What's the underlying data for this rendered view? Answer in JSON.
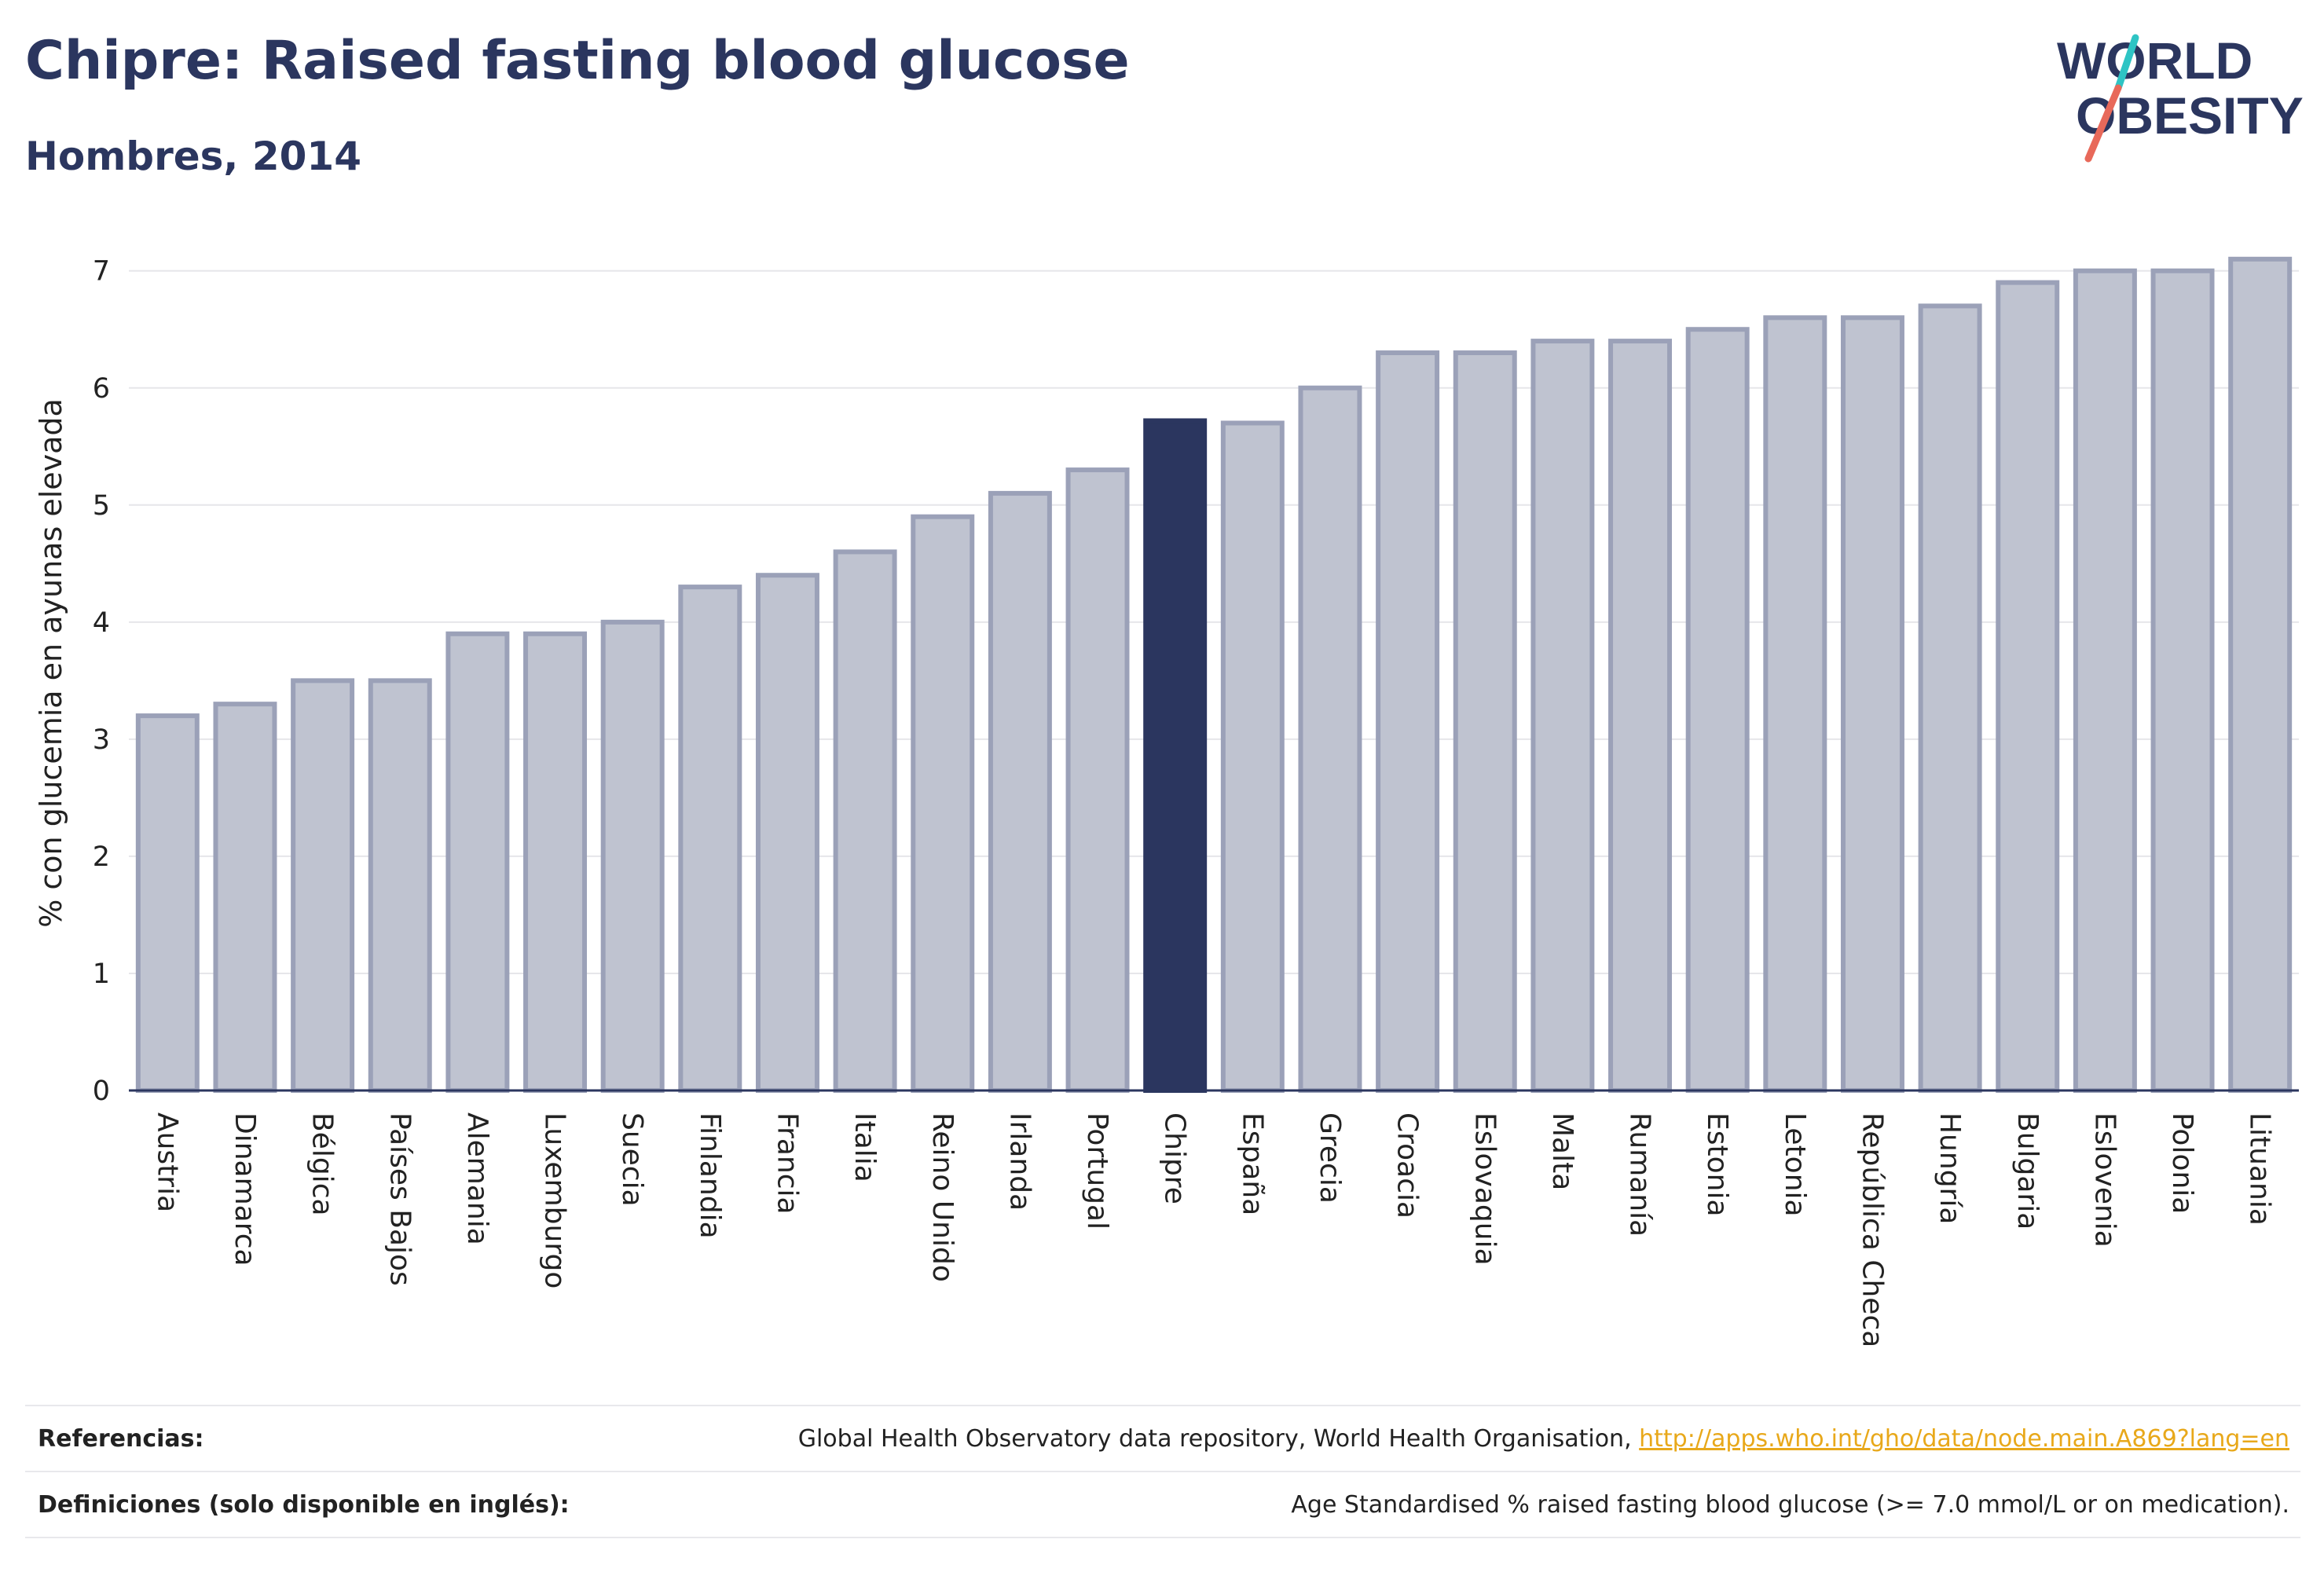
{
  "header": {
    "title": "Chipre: Raised fasting blood glucose",
    "subtitle": "Hombres, 2014"
  },
  "logo": {
    "line1": "WORLD",
    "line2": "OBESITY",
    "accent_colors": [
      "#2ec4c4",
      "#e8695a"
    ]
  },
  "colors": {
    "highlight": "#2b365f",
    "bar_fill": "#bfc3d0",
    "bar_stroke": "#9ba1b8",
    "grid": "#e6e6ea",
    "axis": "#2b365f"
  },
  "chart_data": {
    "type": "bar",
    "ylabel": "% con glucemia en ayunas elevada",
    "xlabel": "",
    "ylim": [
      0,
      7.3
    ],
    "yticks": [
      0,
      1,
      2,
      3,
      4,
      5,
      6,
      7
    ],
    "grid": true,
    "highlight": "Chipre",
    "categories": [
      "Austria",
      "Dinamarca",
      "Bélgica",
      "Países Bajos",
      "Alemania",
      "Luxemburgo",
      "Suecia",
      "Finlandia",
      "Francia",
      "Italia",
      "Reino Unido",
      "Irlanda",
      "Portugal",
      "Chipre",
      "España",
      "Grecia",
      "Croacia",
      "Eslovaquia",
      "Malta",
      "Rumanía",
      "Estonia",
      "Letonia",
      "República Checa",
      "Hungría",
      "Bulgaria",
      "Eslovenia",
      "Polonia",
      "Lituania"
    ],
    "values": [
      3.2,
      3.3,
      3.5,
      3.5,
      3.9,
      3.9,
      4.0,
      4.3,
      4.4,
      4.6,
      4.9,
      5.1,
      5.3,
      5.72,
      5.7,
      6.0,
      6.3,
      6.3,
      6.4,
      6.4,
      6.5,
      6.6,
      6.6,
      6.7,
      6.9,
      7.0,
      7.0,
      7.1
    ]
  },
  "footer": {
    "references_label": "Referencias:",
    "references_text": "Global Health Observatory data repository, World Health Organisation, ",
    "references_link": "http://apps.who.int/gho/data/node.main.A869?lang=en",
    "definitions_label": "Definiciones (solo disponible en inglés):",
    "definitions_text": "Age Standardised % raised fasting blood glucose (>= 7.0 mmol/L or on medication)."
  }
}
